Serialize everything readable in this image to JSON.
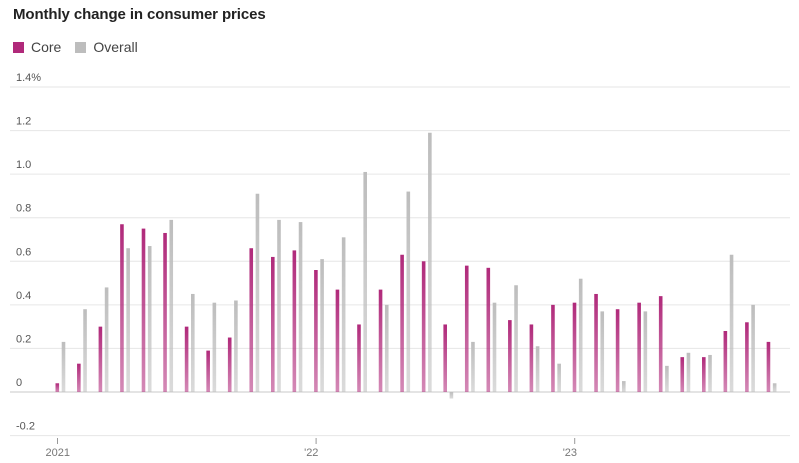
{
  "colors": {
    "core": "#b0297a",
    "overall": "#bdbdbd",
    "grid": "#e6e6e6",
    "zero": "#c8c8c8"
  },
  "chart_data": {
    "type": "bar",
    "title": "Monthly change in consumer prices",
    "xlabel": "",
    "ylabel": "",
    "ylim": [
      -0.2,
      1.4
    ],
    "yticks": [
      -0.2,
      0,
      0.2,
      0.4,
      0.6,
      0.8,
      1.0,
      1.2,
      1.4
    ],
    "ytick_labels": [
      "-0.2",
      "0",
      "0.2",
      "0.4",
      "0.6",
      "0.8",
      "1.0",
      "1.2",
      "1.4%"
    ],
    "xtick_labels": [
      {
        "label": "2021",
        "index": 0
      },
      {
        "label": "'22",
        "index": 12
      },
      {
        "label": "'23",
        "index": 24
      }
    ],
    "legend_position": "top-left",
    "grid": true,
    "categories": [
      "Jan 2021",
      "Feb 2021",
      "Mar 2021",
      "Apr 2021",
      "May 2021",
      "Jun 2021",
      "Jul 2021",
      "Aug 2021",
      "Sep 2021",
      "Oct 2021",
      "Nov 2021",
      "Dec 2021",
      "Jan 2022",
      "Feb 2022",
      "Mar 2022",
      "Apr 2022",
      "May 2022",
      "Jun 2022",
      "Jul 2022",
      "Aug 2022",
      "Sep 2022",
      "Oct 2022",
      "Nov 2022",
      "Dec 2022",
      "Jan 2023",
      "Feb 2023",
      "Mar 2023",
      "Apr 2023",
      "May 2023",
      "Jun 2023",
      "Jul 2023",
      "Aug 2023",
      "Sep 2023",
      "Oct 2023"
    ],
    "series": [
      {
        "name": "Core",
        "values": [
          0.04,
          0.13,
          0.3,
          0.77,
          0.75,
          0.73,
          0.3,
          0.19,
          0.25,
          0.66,
          0.62,
          0.65,
          0.56,
          0.47,
          0.31,
          0.47,
          0.63,
          0.6,
          0.31,
          0.58,
          0.57,
          0.33,
          0.31,
          0.4,
          0.41,
          0.45,
          0.38,
          0.41,
          0.44,
          0.16,
          0.16,
          0.28,
          0.32,
          0.23
        ]
      },
      {
        "name": "Overall",
        "values": [
          0.23,
          0.38,
          0.48,
          0.66,
          0.67,
          0.79,
          0.45,
          0.41,
          0.42,
          0.91,
          0.79,
          0.78,
          0.61,
          0.71,
          1.01,
          0.4,
          0.92,
          1.19,
          -0.03,
          0.23,
          0.41,
          0.49,
          0.21,
          0.13,
          0.52,
          0.37,
          0.05,
          0.37,
          0.12,
          0.18,
          0.17,
          0.63,
          0.4,
          0.04
        ]
      }
    ]
  }
}
